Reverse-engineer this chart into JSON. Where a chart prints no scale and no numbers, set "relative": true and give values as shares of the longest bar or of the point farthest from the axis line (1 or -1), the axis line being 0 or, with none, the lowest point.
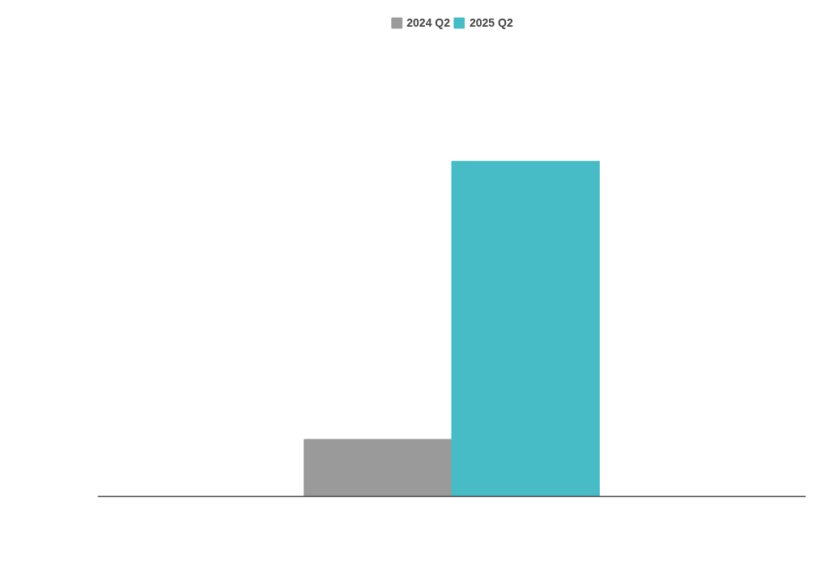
{
  "chart_data": {
    "type": "bar",
    "relative": true,
    "categories": [
      null
    ],
    "series": [
      {
        "name": "2024 Q2",
        "color": "#9a9a9a",
        "values": [
          0.17
        ]
      },
      {
        "name": "2025 Q2",
        "color": "#47bbc6",
        "values": [
          1
        ]
      }
    ],
    "legend": "top"
  }
}
